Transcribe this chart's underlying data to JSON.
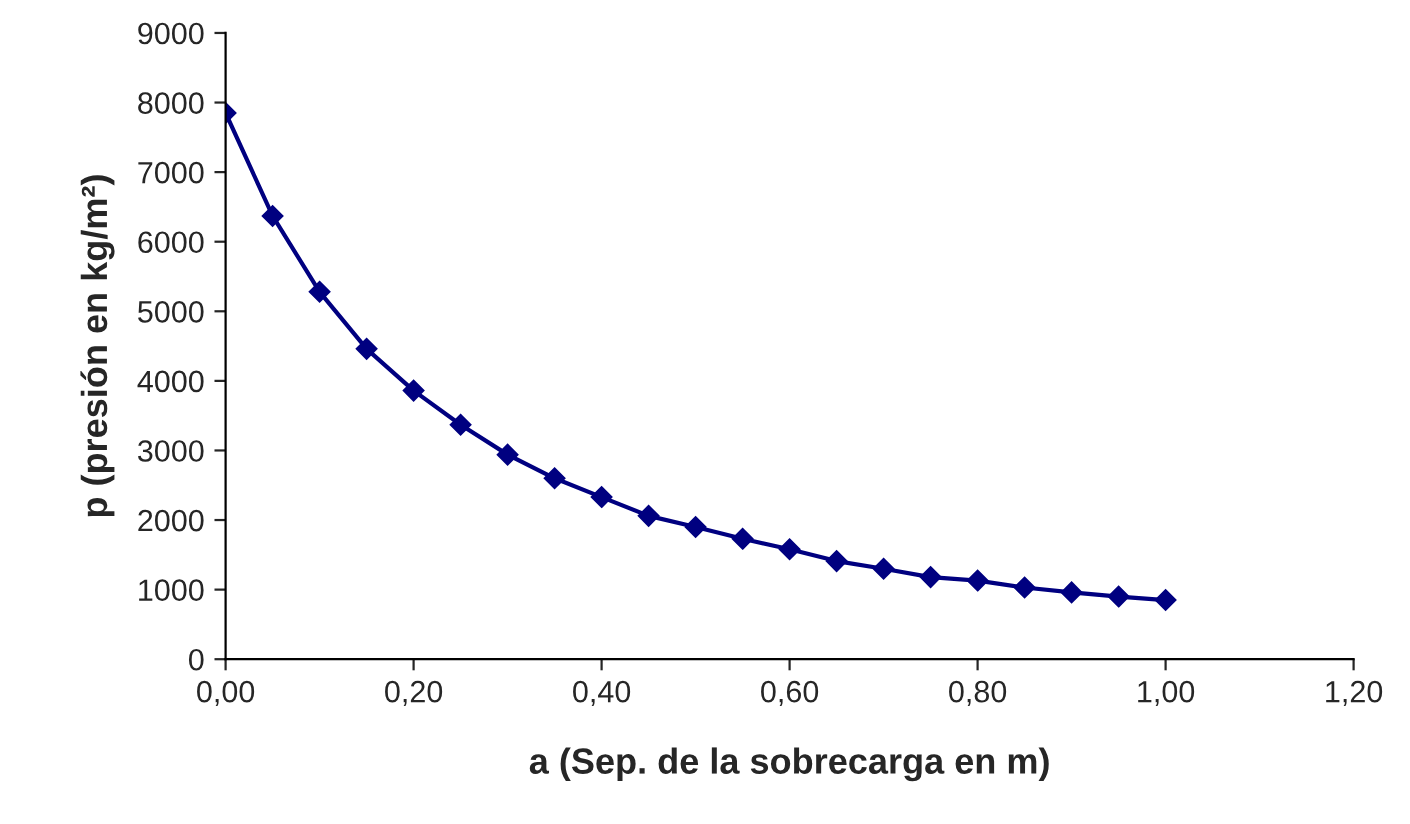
{
  "chart_data": {
    "type": "line",
    "xlabel": "a (Sep. de la sobrecarga en m)",
    "ylabel": "p (presión en kg/m²)",
    "x": [
      0,
      0.05,
      0.1,
      0.15,
      0.2,
      0.25,
      0.3,
      0.35,
      0.4,
      0.45,
      0.5,
      0.55,
      0.6,
      0.65,
      0.7,
      0.75,
      0.8,
      0.85,
      0.9,
      0.95,
      1.0
    ],
    "series": [
      {
        "color": "#000080",
        "values": [
          7850,
          6370,
          5280,
          4460,
          3860,
          3370,
          2940,
          2600,
          2330,
          2060,
          1900,
          1730,
          1580,
          1410,
          1300,
          1180,
          1130,
          1030,
          960,
          900,
          850
        ]
      }
    ],
    "marker": "diamond",
    "line_style": "solid",
    "grid": false,
    "legend": false,
    "xlim": [
      0,
      1.2
    ],
    "ylim": [
      0,
      9000
    ],
    "xticks": [
      {
        "value": 0,
        "label": "0,00"
      },
      {
        "value": 0.2,
        "label": "0,20"
      },
      {
        "value": 0.4,
        "label": "0,40"
      },
      {
        "value": 0.6,
        "label": "0,60"
      },
      {
        "value": 0.8,
        "label": "0,80"
      },
      {
        "value": 1.0,
        "label": "1,00"
      },
      {
        "value": 1.2,
        "label": "1,20"
      }
    ],
    "yticks": [
      0,
      1000,
      2000,
      3000,
      4000,
      5000,
      6000,
      7000,
      8000,
      9000
    ]
  }
}
